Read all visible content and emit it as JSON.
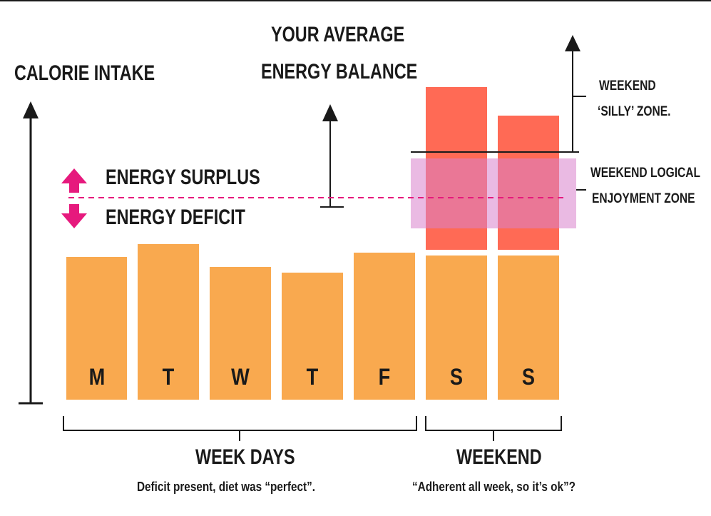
{
  "title": {
    "line1": "YOUR AVERAGE",
    "line2": "ENERGY BALANCE"
  },
  "y_axis_label": "CALORIE INTAKE",
  "legend": {
    "surplus": "ENERGY SURPLUS",
    "deficit": "ENERGY DEFICIT"
  },
  "zones": {
    "silly_line1": "WEEKEND",
    "silly_line2": "‘SILLY’ ZONE.",
    "logical_line1": "WEEKEND LOGICAL",
    "logical_line2": "ENJOYMENT ZONE"
  },
  "days": [
    "M",
    "T",
    "W",
    "T",
    "F",
    "S",
    "S"
  ],
  "groups": {
    "weekdays_title": "WEEK DAYS",
    "weekdays_caption": "Deficit present, diet was “perfect”.",
    "weekend_title": "WEEKEND",
    "weekend_caption": "“Adherent all week, so it’s ok”?"
  },
  "colors": {
    "base_bar": "#f9a94f",
    "excess_bar": "#ff6a55",
    "logical_zone": "#e6a2d8",
    "balance_line": "#e6197d",
    "ink": "#1a1a1a"
  }
}
